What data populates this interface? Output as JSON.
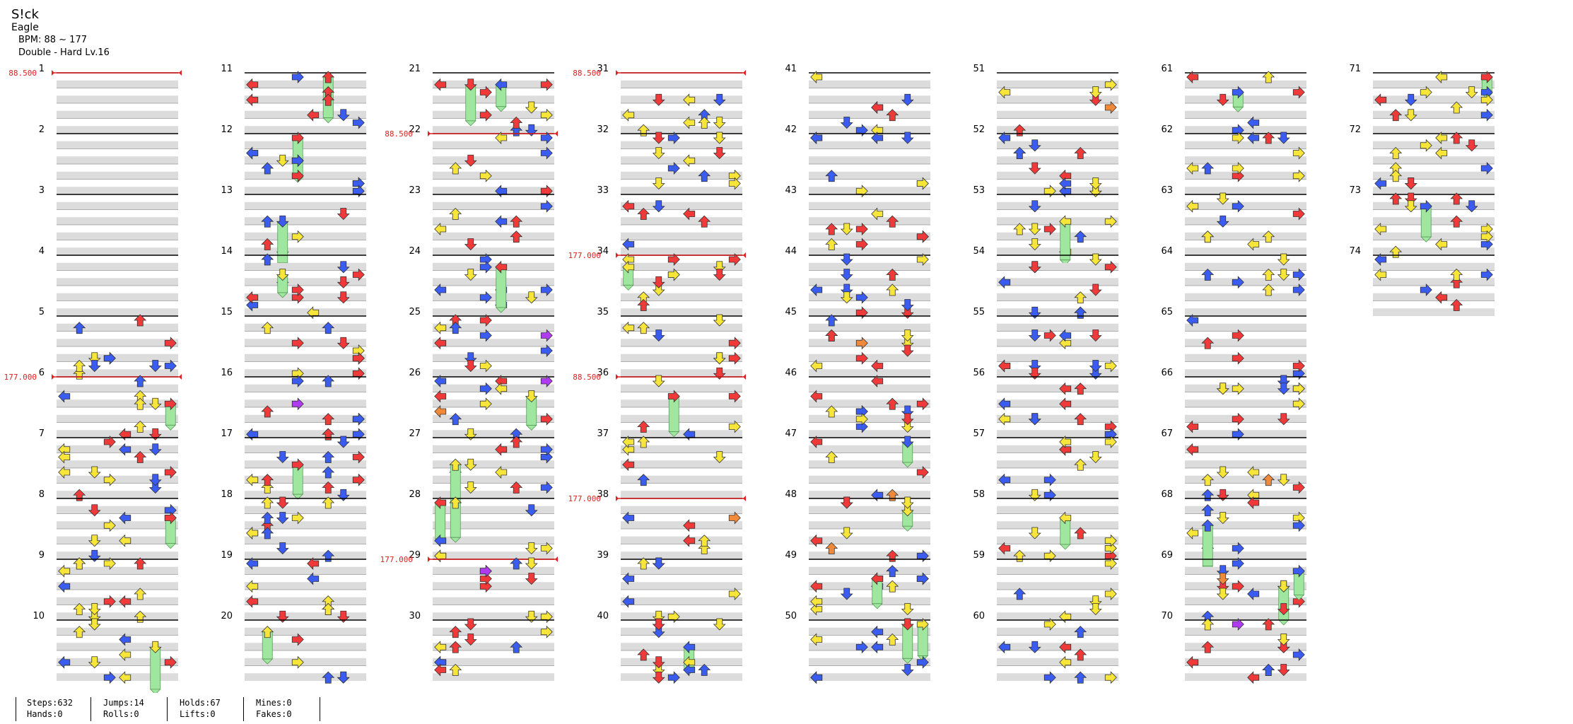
{
  "song": {
    "title": "S!ck",
    "artist": "Eagle",
    "bpm": "BPM: 88 ~ 177",
    "difficulty": "Double - Hard  Lv.16"
  },
  "colors": {
    "red": "#f03a3a",
    "blue": "#3a5cf0",
    "yellow": "#f7e53a",
    "orange": "#f08a3a",
    "purple": "#b03af0",
    "hold": "#9fe79f",
    "bpm_line": "#e02020",
    "stripe": "#dcdcdc"
  },
  "measures": {
    "first": 1,
    "last": 74,
    "per_column": 10
  },
  "bpm_changes": [
    {
      "measure": 1,
      "label": "88.500"
    },
    {
      "measure": 6,
      "label": "177.000"
    },
    {
      "measure": 22,
      "label": "88.500"
    },
    {
      "measure": 29,
      "label": "177.000"
    },
    {
      "measure": 31,
      "label": "88.500"
    },
    {
      "measure": 34,
      "label": "177.000"
    },
    {
      "measure": 36,
      "label": "88.500"
    },
    {
      "measure": 38,
      "label": "177.000"
    }
  ],
  "stats": {
    "steps": "Steps:632",
    "hands": "Hands:0",
    "jumps": "Jumps:14",
    "rolls": "Rolls:0",
    "holds": "Holds:67",
    "lifts": "Lifts:0",
    "mines": "Mines:0",
    "fakes": "Fakes:0"
  }
}
